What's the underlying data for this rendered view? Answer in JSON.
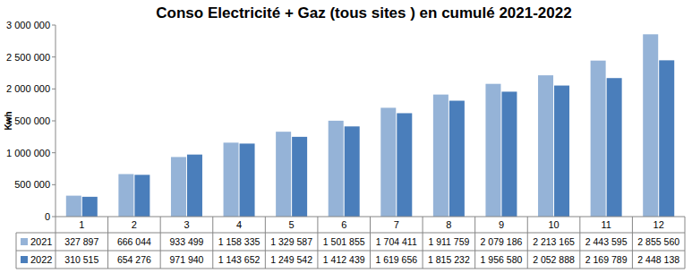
{
  "chart_data": {
    "type": "bar",
    "title": "Conso Electricité + Gaz (tous sites ) en cumulé 2021-2022",
    "y_label": "Kwh",
    "categories": [
      "1",
      "2",
      "3",
      "4",
      "5",
      "6",
      "7",
      "8",
      "9",
      "10",
      "11",
      "12"
    ],
    "series": [
      {
        "name": "2021",
        "color": "#95b3d7",
        "values": [
          327897,
          666044,
          933499,
          1158335,
          1329587,
          1501855,
          1704411,
          1911759,
          2079186,
          2213165,
          2443595,
          2855560
        ],
        "value_labels": [
          "327 897",
          "666 044",
          "933 499",
          "1 158 335",
          "1 329 587",
          "1 501 855",
          "1 704 411",
          "1 911 759",
          "2 079 186",
          "2 213 165",
          "2 443 595",
          "2 855 560"
        ]
      },
      {
        "name": "2022",
        "color": "#4a7ebb",
        "values": [
          310515,
          654276,
          971940,
          1143652,
          1249542,
          1412439,
          1619656,
          1815232,
          1956580,
          2052888,
          2169789,
          2448138
        ],
        "value_labels": [
          "310 515",
          "654 276",
          "971 940",
          "1 143 652",
          "1 249 542",
          "1 412 439",
          "1 619 656",
          "1 815 232",
          "1 956 580",
          "2 052 888",
          "2 169 789",
          "2 448 138"
        ]
      }
    ],
    "ylim": [
      0,
      3000000
    ],
    "yticks": [
      0,
      {
        "value": 500000,
        "label": "500 000"
      },
      {
        "value": 1000000,
        "label": "1 000 000"
      },
      {
        "value": 1500000,
        "label": "1 500 000"
      },
      {
        "value": 2000000,
        "label": "2 000 000"
      },
      {
        "value": 2500000,
        "label": "2 500 000"
      },
      {
        "value": 3000000,
        "label": "3 000 000"
      }
    ],
    "grid": false
  }
}
